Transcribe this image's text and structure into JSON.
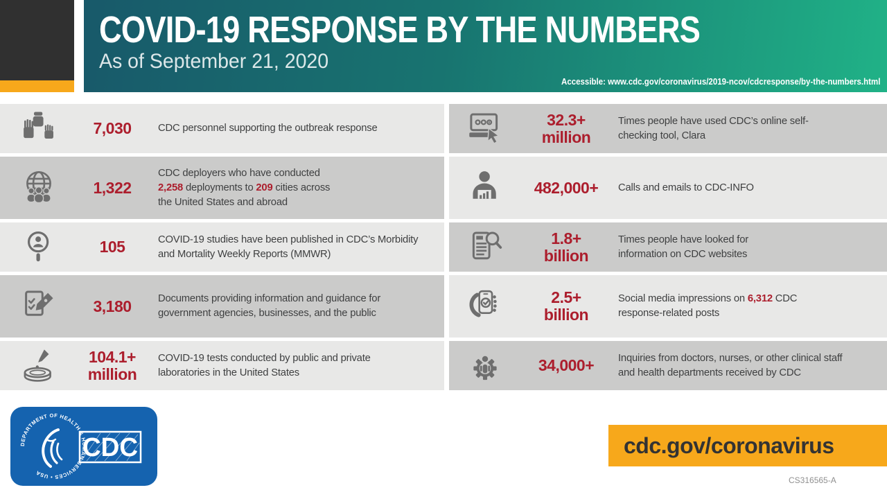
{
  "header": {
    "title": "COVID-19 RESPONSE BY THE NUMBERS",
    "subtitle": "As of September 21, 2020",
    "accessible": "Accessible: www.cdc.gov/coronavirus/2019-ncov/cdcresponse/by-the-numbers.html"
  },
  "footer": {
    "url_banner": "cdc.gov/coronavirus",
    "doc_code": "CS316565-A",
    "cdc_logo": {
      "ring_text": "DEPARTMENT OF HEALTH & HUMAN SERVICES • USA",
      "logo_text": "CDC"
    }
  },
  "colors": {
    "header_teal_dark": "#18596A",
    "header_green": "#20B287",
    "accent_red": "#AC1E2D",
    "orange": "#F7A81B",
    "row_light": "#E8E8E7",
    "row_dark": "#CBCBCA",
    "icon_gray": "#6E6E6E",
    "text_dark": "#3F4041",
    "cdc_blue": "#1563AF",
    "corner_dark": "#303030"
  },
  "stats": {
    "left": [
      {
        "icon": "hands-icon",
        "value_lines": [
          "7,030"
        ],
        "desc": [
          [
            {
              "t": "CDC personnel supporting the outbreak response"
            }
          ]
        ]
      },
      {
        "icon": "globe-people-icon",
        "value_lines": [
          "1,322"
        ],
        "desc": [
          [
            {
              "t": "CDC deployers who have conducted"
            }
          ],
          [
            {
              "t": "2,258",
              "red": true
            },
            {
              "t": " deployments to "
            },
            {
              "t": "209",
              "red": true
            },
            {
              "t": " cities across"
            }
          ],
          [
            {
              "t": "the United States and abroad"
            }
          ]
        ]
      },
      {
        "icon": "magnifier-person-icon",
        "value_lines": [
          "105"
        ],
        "desc": [
          [
            {
              "t": "COVID-19 studies have been published in CDC’s Morbidity"
            }
          ],
          [
            {
              "t": "and Mortality Weekly Reports (MMWR)"
            }
          ]
        ]
      },
      {
        "icon": "document-pen-icon",
        "value_lines": [
          "3,180"
        ],
        "desc": [
          [
            {
              "t": "Documents providing information and guidance for"
            }
          ],
          [
            {
              "t": "government agencies, businesses, and the public"
            }
          ]
        ]
      },
      {
        "icon": "petri-dish-icon",
        "value_lines": [
          "104.1+",
          "million"
        ],
        "desc": [
          [
            {
              "t": "COVID-19 tests conducted by public and private"
            }
          ],
          [
            {
              "t": "laboratories in the United States"
            }
          ]
        ]
      }
    ],
    "right": [
      {
        "icon": "laptop-cursor-icon",
        "value_lines": [
          "32.3+",
          "million"
        ],
        "desc": [
          [
            {
              "t": "Times people have used CDC’s online self-"
            }
          ],
          [
            {
              "t": "checking tool, Clara"
            }
          ]
        ]
      },
      {
        "icon": "person-chart-icon",
        "value_lines": [
          "482,000+"
        ],
        "desc": [
          [
            {
              "t": "Calls and emails to CDC-INFO"
            }
          ]
        ]
      },
      {
        "icon": "tablet-magnifier-icon",
        "value_lines": [
          "1.8+",
          "billion"
        ],
        "desc": [
          [
            {
              "t": "Times people have looked for"
            }
          ],
          [
            {
              "t": "information on CDC websites"
            }
          ]
        ]
      },
      {
        "icon": "phone-check-icon",
        "value_lines": [
          "2.5+",
          "billion"
        ],
        "desc": [
          [
            {
              "t": "Social media impressions on "
            },
            {
              "t": "6,312",
              "red": true
            },
            {
              "t": " CDC"
            }
          ],
          [
            {
              "t": "response-related posts"
            }
          ]
        ]
      },
      {
        "icon": "gear-person-icon",
        "value_lines": [
          "34,000+"
        ],
        "desc": [
          [
            {
              "t": "Inquiries from doctors, nurses, or other clinical staff"
            }
          ],
          [
            {
              "t": "and health departments received by CDC"
            }
          ]
        ]
      }
    ]
  }
}
